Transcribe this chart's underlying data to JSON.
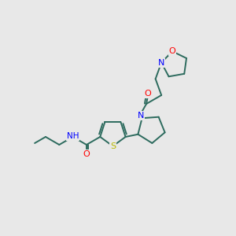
{
  "background_color": "#e8e8e8",
  "bond_color": "#2d6b5e",
  "atom_colors": {
    "O": "#ff0000",
    "N": "#0000ff",
    "S": "#b8b800",
    "H": "#5a8080",
    "C": "#2d6b5e"
  },
  "figsize": [
    3.0,
    3.0
  ],
  "dpi": 100
}
